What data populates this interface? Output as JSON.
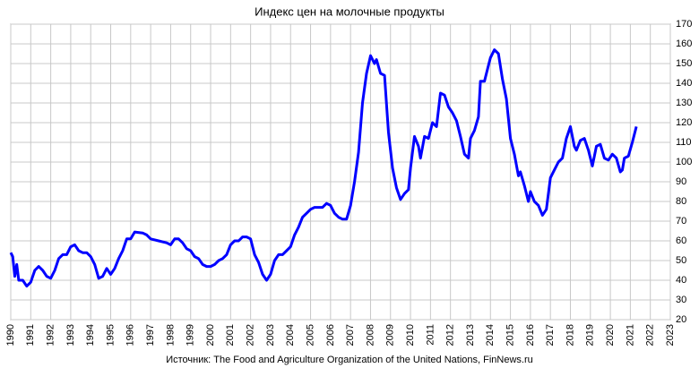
{
  "chart_data": {
    "type": "line",
    "title": "Индекс цен на молочные продукты",
    "source": "Источник: The Food and Agriculture Organization of the United Nations, FinNews.ru",
    "xlim": [
      1990,
      2023
    ],
    "xticks": [
      1990,
      1991,
      1992,
      1993,
      1994,
      1995,
      1996,
      1997,
      1998,
      1999,
      2000,
      2001,
      2002,
      2003,
      2004,
      2005,
      2006,
      2007,
      2008,
      2009,
      2010,
      2011,
      2012,
      2013,
      2014,
      2015,
      2016,
      2017,
      2018,
      2019,
      2020,
      2021,
      2022,
      2023
    ],
    "ylim": [
      20,
      170
    ],
    "yticks": [
      20,
      30,
      40,
      50,
      60,
      70,
      80,
      90,
      100,
      110,
      120,
      130,
      140,
      150,
      160,
      170
    ],
    "grid": true,
    "series": [
      {
        "color": "#0000ff",
        "x": [
          1990.0,
          1990.1,
          1990.2,
          1990.3,
          1990.4,
          1990.6,
          1990.8,
          1991.0,
          1991.2,
          1991.4,
          1991.6,
          1991.8,
          1992.0,
          1992.2,
          1992.4,
          1992.6,
          1992.8,
          1993.0,
          1993.2,
          1993.4,
          1993.6,
          1993.8,
          1994.0,
          1994.2,
          1994.4,
          1994.6,
          1994.8,
          1995.0,
          1995.2,
          1995.4,
          1995.6,
          1995.8,
          1996.0,
          1996.2,
          1996.6,
          1996.8,
          1997.0,
          1997.4,
          1997.8,
          1998.0,
          1998.2,
          1998.4,
          1998.6,
          1998.8,
          1999.0,
          1999.2,
          1999.4,
          1999.6,
          1999.8,
          2000.0,
          2000.2,
          2000.4,
          2000.6,
          2000.8,
          2001.0,
          2001.2,
          2001.4,
          2001.6,
          2001.8,
          2002.0,
          2002.2,
          2002.4,
          2002.6,
          2002.8,
          2003.0,
          2003.2,
          2003.4,
          2003.6,
          2003.8,
          2004.0,
          2004.2,
          2004.4,
          2004.6,
          2004.8,
          2005.0,
          2005.2,
          2005.4,
          2005.6,
          2005.8,
          2006.0,
          2006.2,
          2006.4,
          2006.6,
          2006.8,
          2007.0,
          2007.2,
          2007.4,
          2007.6,
          2007.8,
          2008.0,
          2008.2,
          2008.3,
          2008.5,
          2008.7,
          2008.9,
          2009.1,
          2009.3,
          2009.5,
          2009.7,
          2009.9,
          2010.0,
          2010.2,
          2010.4,
          2010.5,
          2010.7,
          2010.9,
          2011.1,
          2011.3,
          2011.5,
          2011.7,
          2011.9,
          2012.1,
          2012.3,
          2012.5,
          2012.7,
          2012.9,
          2013.0,
          2013.2,
          2013.4,
          2013.5,
          2013.7,
          2013.9,
          2014.0,
          2014.2,
          2014.4,
          2014.6,
          2014.8,
          2015.0,
          2015.2,
          2015.4,
          2015.5,
          2015.7,
          2015.9,
          2016.0,
          2016.2,
          2016.4,
          2016.6,
          2016.8,
          2017.0,
          2017.2,
          2017.4,
          2017.6,
          2017.8,
          2018.0,
          2018.2,
          2018.3,
          2018.5,
          2018.7,
          2018.9,
          2019.1,
          2019.3,
          2019.5,
          2019.7,
          2019.9,
          2020.1,
          2020.3,
          2020.5,
          2020.6,
          2020.7,
          2020.9,
          2021.1,
          2021.3
        ],
        "values": [
          54,
          52,
          42,
          48,
          40,
          40,
          37,
          39,
          45,
          47,
          45,
          42,
          41,
          45,
          51,
          53,
          53,
          57,
          58,
          55,
          54,
          54,
          52,
          48,
          41,
          42,
          46,
          43,
          46,
          51,
          55,
          61,
          61,
          64.5,
          64,
          63,
          61,
          60,
          59,
          58,
          61,
          61,
          59,
          56,
          55,
          52,
          51,
          48,
          47,
          47,
          48,
          50,
          51,
          53,
          58,
          60,
          60,
          62,
          62,
          61,
          53,
          49,
          43,
          40,
          43,
          50,
          53,
          53,
          55,
          57,
          63,
          67,
          72,
          74,
          76,
          77,
          77,
          77,
          79,
          78,
          74,
          72,
          71,
          71,
          78,
          90,
          105,
          130,
          145,
          154,
          150,
          152,
          145,
          144,
          115,
          97,
          87,
          81,
          84,
          86,
          97,
          113,
          108,
          102,
          113,
          112,
          120,
          118,
          135,
          134,
          128,
          125,
          121,
          113,
          104,
          102,
          112,
          116,
          123,
          141,
          141,
          149,
          153,
          157,
          155,
          142,
          132,
          112,
          104,
          93,
          95,
          88,
          80,
          85,
          80,
          78,
          73,
          76,
          92,
          96,
          100,
          102,
          112,
          118,
          108,
          106,
          111,
          112,
          106,
          98,
          108,
          109,
          102,
          101,
          104,
          102,
          95,
          96,
          102,
          103,
          110,
          118
        ]
      }
    ]
  }
}
